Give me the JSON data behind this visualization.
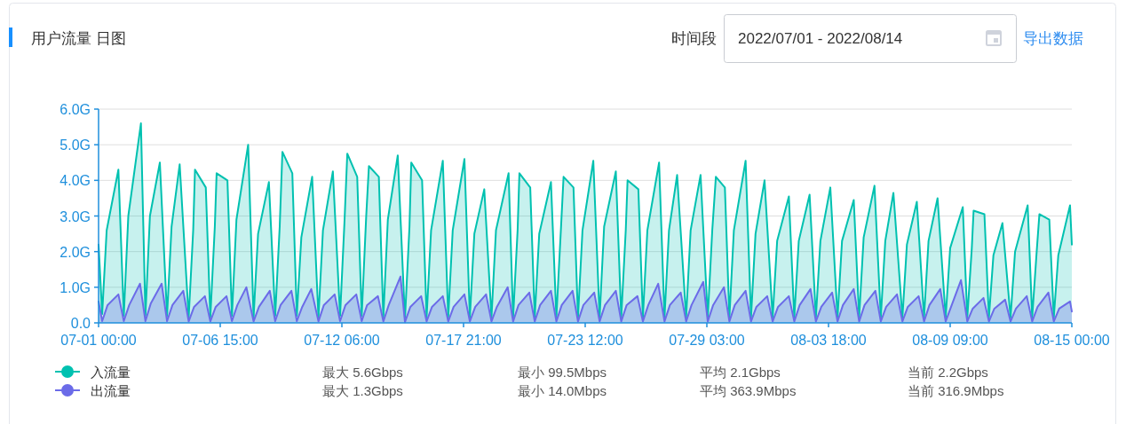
{
  "chart_data": {
    "type": "area",
    "title": "用户流量 日图",
    "annotations": [
      "时间段",
      "2022/07/01 - 2022/08/14",
      "导出数据",
      "最大 5.6Gbps",
      "最小 99.5Mbps",
      "平均 2.1Gbps",
      "当前 2.2Gbps",
      "最大 1.3Gbps",
      "最小 14.0Mbps",
      "平均 363.9Mbps",
      "当前 316.9Mbps"
    ],
    "xlim": [
      "2022-07-01T00:00",
      "2022-08-15T00:00"
    ],
    "xticks": [
      {
        "value": "2022-07-01T00:00",
        "label": "07-01 00:00"
      },
      {
        "value": "2022-07-06T15:00",
        "label": "07-06 15:00"
      },
      {
        "value": "2022-07-12T06:00",
        "label": "07-12 06:00"
      },
      {
        "value": "2022-07-17T21:00",
        "label": "07-17 21:00"
      },
      {
        "value": "2022-07-23T12:00",
        "label": "07-23 12:00"
      },
      {
        "value": "2022-07-29T03:00",
        "label": "07-29 03:00"
      },
      {
        "value": "2022-08-03T18:00",
        "label": "08-03 18:00"
      },
      {
        "value": "2022-08-09T09:00",
        "label": "08-09 09:00"
      },
      {
        "value": "2022-08-15T00:00",
        "label": "08-15 00:00"
      }
    ],
    "ylim": [
      0,
      6
    ],
    "yticks": [
      {
        "value": 0,
        "label": "0.0"
      },
      {
        "value": 1,
        "label": "1.0G"
      },
      {
        "value": 2,
        "label": "2.0G"
      },
      {
        "value": 3,
        "label": "3.0G"
      },
      {
        "value": 4,
        "label": "4.0G"
      },
      {
        "value": 5,
        "label": "5.0G"
      },
      {
        "value": 6,
        "label": "6.0G"
      }
    ],
    "grid": "y",
    "legend": "bottom left",
    "marker": "none",
    "line_style": "solid",
    "series": [
      {
        "name": "入流量",
        "color": "#00c1b0",
        "x": [
          "2022-07-01T00:00",
          "2022-07-01T04:00",
          "2022-07-01T09:00",
          "2022-07-01T22:00",
          "2022-07-02T04:00",
          "2022-07-02T09:00",
          "2022-07-02T23:00",
          "2022-07-03T04:00",
          "2022-07-03T09:00",
          "2022-07-03T20:00",
          "2022-07-04T04:00",
          "2022-07-04T09:00",
          "2022-07-04T18:00",
          "2022-07-05T04:00",
          "2022-07-05T09:00",
          "2022-07-05T11:00",
          "2022-07-05T23:00",
          "2022-07-06T04:00",
          "2022-07-06T09:00",
          "2022-07-06T11:00",
          "2022-07-06T23:00",
          "2022-07-07T04:00",
          "2022-07-07T09:00",
          "2022-07-07T22:00",
          "2022-07-08T04:00",
          "2022-07-08T09:00",
          "2022-07-08T21:00",
          "2022-07-09T04:00",
          "2022-07-09T09:00",
          "2022-07-09T12:00",
          "2022-07-09T23:00",
          "2022-07-10T04:00",
          "2022-07-10T09:00",
          "2022-07-10T21:00",
          "2022-07-11T04:00",
          "2022-07-11T09:00",
          "2022-07-11T20:00",
          "2022-07-12T04:00",
          "2022-07-12T09:00",
          "2022-07-12T12:00",
          "2022-07-12T23:00",
          "2022-07-13T04:00",
          "2022-07-13T09:00",
          "2022-07-13T12:00",
          "2022-07-13T23:00",
          "2022-07-14T04:00",
          "2022-07-14T09:00",
          "2022-07-14T20:00",
          "2022-07-15T04:00",
          "2022-07-15T09:00",
          "2022-07-15T11:00",
          "2022-07-15T23:00",
          "2022-07-16T04:00",
          "2022-07-16T09:00",
          "2022-07-16T22:00",
          "2022-07-17T04:00",
          "2022-07-17T09:00",
          "2022-07-17T22:00",
          "2022-07-18T04:00",
          "2022-07-18T09:00",
          "2022-07-18T20:00",
          "2022-07-19T04:00",
          "2022-07-19T09:00",
          "2022-07-19T23:00",
          "2022-07-20T04:00",
          "2022-07-20T09:00",
          "2022-07-20T11:00",
          "2022-07-20T23:00",
          "2022-07-21T04:00",
          "2022-07-21T09:00",
          "2022-07-21T22:00",
          "2022-07-22T04:00",
          "2022-07-22T09:00",
          "2022-07-22T12:00",
          "2022-07-22T23:00",
          "2022-07-23T04:00",
          "2022-07-23T09:00",
          "2022-07-23T21:00",
          "2022-07-24T04:00",
          "2022-07-24T09:00",
          "2022-07-24T22:00",
          "2022-07-25T04:00",
          "2022-07-25T09:00",
          "2022-07-25T11:00",
          "2022-07-25T23:00",
          "2022-07-26T04:00",
          "2022-07-26T09:00",
          "2022-07-26T22:00",
          "2022-07-27T04:00",
          "2022-07-27T09:00",
          "2022-07-27T18:00",
          "2022-07-28T04:00",
          "2022-07-28T09:00",
          "2022-07-28T20:00",
          "2022-07-29T04:00",
          "2022-07-29T09:00",
          "2022-07-29T13:00",
          "2022-07-29T23:00",
          "2022-07-30T04:00",
          "2022-07-30T09:00",
          "2022-07-30T22:00",
          "2022-07-31T04:00",
          "2022-07-31T09:00",
          "2022-07-31T19:00",
          "2022-08-01T04:00",
          "2022-08-01T09:00",
          "2022-08-01T22:00",
          "2022-08-02T04:00",
          "2022-08-02T09:00",
          "2022-08-02T21:00",
          "2022-08-03T04:00",
          "2022-08-03T09:00",
          "2022-08-03T20:00",
          "2022-08-04T04:00",
          "2022-08-04T09:00",
          "2022-08-04T22:00",
          "2022-08-05T04:00",
          "2022-08-05T09:00",
          "2022-08-05T21:00",
          "2022-08-06T04:00",
          "2022-08-06T09:00",
          "2022-08-06T18:00",
          "2022-08-07T04:00",
          "2022-08-07T09:00",
          "2022-08-07T20:00",
          "2022-08-08T04:00",
          "2022-08-08T09:00",
          "2022-08-08T19:00",
          "2022-08-09T04:00",
          "2022-08-09T09:00",
          "2022-08-09T23:00",
          "2022-08-10T04:00",
          "2022-08-10T09:00",
          "2022-08-10T11:00",
          "2022-08-10T23:00",
          "2022-08-11T04:00",
          "2022-08-11T09:00",
          "2022-08-11T19:00",
          "2022-08-12T04:00",
          "2022-08-12T09:00",
          "2022-08-12T23:00",
          "2022-08-13T04:00",
          "2022-08-13T09:00",
          "2022-08-13T12:00",
          "2022-08-13T23:00",
          "2022-08-14T04:00",
          "2022-08-14T09:00",
          "2022-08-14T22:00",
          "2022-08-15T00:00"
        ],
        "values": [
          2.2,
          0.25,
          2.6,
          4.3,
          0.2,
          3.0,
          5.6,
          0.2,
          3.0,
          4.5,
          0.2,
          2.7,
          4.45,
          0.15,
          2.6,
          4.3,
          3.8,
          0.15,
          2.7,
          4.2,
          4.0,
          0.2,
          2.9,
          5.0,
          0.15,
          2.5,
          3.95,
          0.2,
          2.7,
          4.8,
          4.2,
          0.2,
          2.4,
          4.1,
          0.15,
          2.6,
          4.25,
          0.2,
          2.9,
          4.75,
          4.1,
          0.2,
          3.0,
          4.4,
          4.1,
          0.15,
          2.9,
          4.7,
          0.1,
          2.7,
          4.5,
          4.0,
          0.15,
          2.6,
          4.55,
          0.15,
          2.6,
          4.6,
          0.15,
          2.5,
          3.75,
          0.15,
          2.6,
          4.2,
          0.15,
          2.6,
          4.2,
          3.8,
          0.15,
          2.5,
          3.95,
          0.15,
          2.6,
          4.1,
          3.8,
          0.15,
          2.6,
          4.55,
          0.15,
          2.7,
          4.25,
          0.15,
          2.6,
          4.0,
          3.75,
          0.15,
          2.6,
          4.5,
          0.15,
          2.6,
          4.15,
          0.15,
          2.6,
          4.15,
          0.15,
          2.6,
          4.1,
          3.8,
          0.15,
          2.6,
          4.55,
          0.15,
          2.5,
          4.0,
          0.15,
          2.3,
          3.55,
          0.15,
          2.3,
          3.6,
          0.15,
          2.3,
          3.8,
          0.15,
          2.3,
          3.45,
          0.15,
          2.4,
          3.85,
          0.15,
          2.3,
          3.65,
          0.15,
          2.2,
          3.4,
          0.15,
          2.3,
          3.5,
          0.15,
          2.1,
          3.25,
          0.15,
          2.1,
          3.15,
          3.05,
          0.15,
          1.9,
          2.8,
          0.15,
          2.0,
          3.3,
          0.15,
          2.0,
          3.05,
          2.9,
          0.15,
          1.9,
          3.3,
          2.2
        ]
      },
      {
        "name": "出流量",
        "color": "#6b6be8",
        "x": [
          "2022-07-01T00:00",
          "2022-07-01T04:00",
          "2022-07-01T10:00",
          "2022-07-01T22:00",
          "2022-07-02T04:00",
          "2022-07-02T10:00",
          "2022-07-02T22:00",
          "2022-07-03T04:00",
          "2022-07-03T10:00",
          "2022-07-03T22:00",
          "2022-07-04T04:00",
          "2022-07-04T10:00",
          "2022-07-04T22:00",
          "2022-07-05T04:00",
          "2022-07-05T10:00",
          "2022-07-05T22:00",
          "2022-07-06T04:00",
          "2022-07-06T10:00",
          "2022-07-06T22:00",
          "2022-07-07T04:00",
          "2022-07-07T10:00",
          "2022-07-07T20:00",
          "2022-07-08T04:00",
          "2022-07-08T10:00",
          "2022-07-08T22:00",
          "2022-07-09T04:00",
          "2022-07-09T10:00",
          "2022-07-09T22:00",
          "2022-07-10T04:00",
          "2022-07-10T10:00",
          "2022-07-10T20:00",
          "2022-07-11T04:00",
          "2022-07-11T10:00",
          "2022-07-11T22:00",
          "2022-07-12T04:00",
          "2022-07-12T10:00",
          "2022-07-12T22:00",
          "2022-07-13T04:00",
          "2022-07-13T10:00",
          "2022-07-13T22:00",
          "2022-07-14T04:00",
          "2022-07-14T10:00",
          "2022-07-14T23:00",
          "2022-07-15T04:00",
          "2022-07-15T10:00",
          "2022-07-15T22:00",
          "2022-07-16T04:00",
          "2022-07-16T10:00",
          "2022-07-16T22:00",
          "2022-07-17T04:00",
          "2022-07-17T10:00",
          "2022-07-17T22:00",
          "2022-07-18T04:00",
          "2022-07-18T10:00",
          "2022-07-18T22:00",
          "2022-07-19T04:00",
          "2022-07-19T10:00",
          "2022-07-19T22:00",
          "2022-07-20T04:00",
          "2022-07-20T10:00",
          "2022-07-20T22:00",
          "2022-07-21T04:00",
          "2022-07-21T10:00",
          "2022-07-21T22:00",
          "2022-07-22T04:00",
          "2022-07-22T10:00",
          "2022-07-22T22:00",
          "2022-07-23T04:00",
          "2022-07-23T10:00",
          "2022-07-23T22:00",
          "2022-07-24T04:00",
          "2022-07-24T10:00",
          "2022-07-24T22:00",
          "2022-07-25T04:00",
          "2022-07-25T10:00",
          "2022-07-25T22:00",
          "2022-07-26T04:00",
          "2022-07-26T10:00",
          "2022-07-26T21:00",
          "2022-07-27T04:00",
          "2022-07-27T10:00",
          "2022-07-27T22:00",
          "2022-07-28T04:00",
          "2022-07-28T10:00",
          "2022-07-28T23:00",
          "2022-07-29T04:00",
          "2022-07-29T10:00",
          "2022-07-29T22:00",
          "2022-07-30T04:00",
          "2022-07-30T10:00",
          "2022-07-30T22:00",
          "2022-07-31T04:00",
          "2022-07-31T10:00",
          "2022-07-31T22:00",
          "2022-08-01T04:00",
          "2022-08-01T10:00",
          "2022-08-01T22:00",
          "2022-08-02T04:00",
          "2022-08-02T10:00",
          "2022-08-02T22:00",
          "2022-08-03T04:00",
          "2022-08-03T10:00",
          "2022-08-03T22:00",
          "2022-08-04T04:00",
          "2022-08-04T10:00",
          "2022-08-04T22:00",
          "2022-08-05T04:00",
          "2022-08-05T10:00",
          "2022-08-05T22:00",
          "2022-08-06T04:00",
          "2022-08-06T10:00",
          "2022-08-06T22:00",
          "2022-08-07T04:00",
          "2022-08-07T10:00",
          "2022-08-07T22:00",
          "2022-08-08T04:00",
          "2022-08-08T10:00",
          "2022-08-08T22:00",
          "2022-08-09T04:00",
          "2022-08-09T10:00",
          "2022-08-09T21:00",
          "2022-08-10T04:00",
          "2022-08-10T10:00",
          "2022-08-10T22:00",
          "2022-08-11T04:00",
          "2022-08-11T10:00",
          "2022-08-11T22:00",
          "2022-08-12T04:00",
          "2022-08-12T10:00",
          "2022-08-12T22:00",
          "2022-08-13T04:00",
          "2022-08-13T10:00",
          "2022-08-13T22:00",
          "2022-08-14T04:00",
          "2022-08-14T10:00",
          "2022-08-14T22:00",
          "2022-08-15T00:00"
        ],
        "values": [
          0.6,
          0.05,
          0.5,
          0.8,
          0.05,
          0.5,
          1.1,
          0.05,
          0.55,
          1.1,
          0.05,
          0.5,
          0.9,
          0.04,
          0.45,
          0.75,
          0.04,
          0.45,
          0.75,
          0.05,
          0.5,
          1.0,
          0.04,
          0.45,
          0.9,
          0.05,
          0.5,
          0.9,
          0.05,
          0.45,
          0.95,
          0.04,
          0.5,
          0.8,
          0.05,
          0.5,
          0.8,
          0.05,
          0.5,
          0.75,
          0.04,
          0.5,
          1.3,
          0.02,
          0.45,
          0.75,
          0.04,
          0.45,
          0.75,
          0.04,
          0.45,
          0.8,
          0.04,
          0.45,
          0.8,
          0.04,
          0.45,
          1.0,
          0.04,
          0.5,
          0.85,
          0.04,
          0.5,
          0.9,
          0.04,
          0.5,
          0.9,
          0.04,
          0.5,
          0.85,
          0.04,
          0.5,
          0.9,
          0.04,
          0.5,
          0.75,
          0.04,
          0.5,
          1.1,
          0.04,
          0.5,
          0.85,
          0.04,
          0.5,
          1.15,
          0.04,
          0.5,
          1.0,
          0.04,
          0.5,
          0.9,
          0.04,
          0.45,
          0.75,
          0.04,
          0.45,
          0.75,
          0.04,
          0.5,
          0.95,
          0.04,
          0.45,
          0.85,
          0.04,
          0.5,
          0.95,
          0.04,
          0.5,
          0.9,
          0.04,
          0.45,
          0.8,
          0.04,
          0.45,
          0.75,
          0.04,
          0.5,
          0.95,
          0.04,
          0.45,
          1.2,
          0.04,
          0.4,
          0.7,
          0.04,
          0.4,
          0.65,
          0.04,
          0.4,
          0.75,
          0.04,
          0.45,
          0.85,
          0.04,
          0.4,
          0.6,
          0.32
        ]
      }
    ]
  }
}
